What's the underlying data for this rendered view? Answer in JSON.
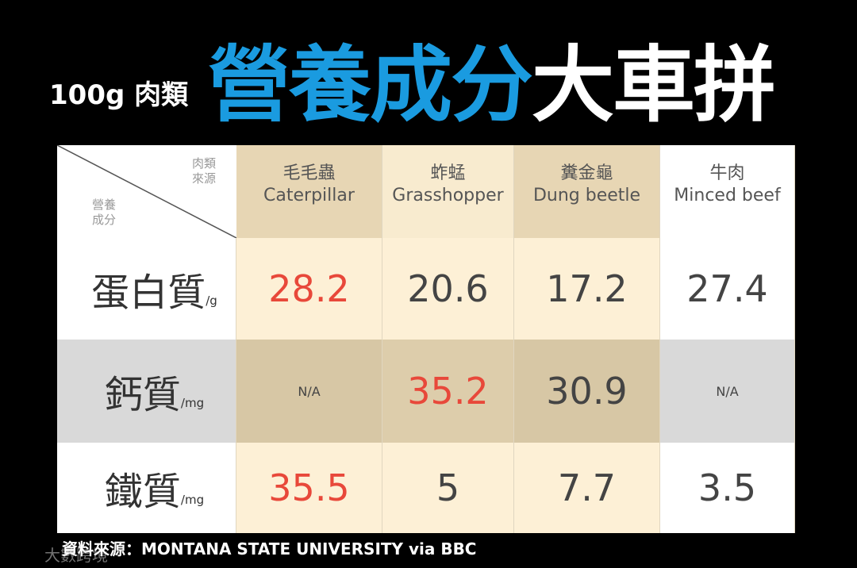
{
  "header": {
    "prefix": "100g 肉類",
    "title_blue": "營養成分",
    "title_white": "大車拼"
  },
  "table": {
    "corner_top": [
      "肉類",
      "來源"
    ],
    "corner_bottom": [
      "營養",
      "成分"
    ],
    "columns": [
      {
        "zh": "毛毛蟲",
        "en": "Caterpillar"
      },
      {
        "zh": "蚱蜢",
        "en": "Grasshopper"
      },
      {
        "zh": "糞金龜",
        "en": "Dung beetle"
      },
      {
        "zh": "牛肉",
        "en": "Minced beef"
      }
    ],
    "highlight_color": "#e8483a",
    "rows": [
      {
        "label": "蛋白質",
        "unit": "/g",
        "cells": [
          28.2,
          20.6,
          17.2,
          27.4
        ],
        "highlighted": 0
      },
      {
        "label": "鈣質",
        "unit": "/mg",
        "cells": [
          "N/A",
          35.2,
          30.9,
          "N/A"
        ],
        "highlighted": 1
      },
      {
        "label": "鐵質",
        "unit": "/mg",
        "cells": [
          35.5,
          5,
          7.7,
          3.5
        ],
        "highlighted": 0
      }
    ]
  },
  "footer": {
    "source": "資料來源：MONTANA STATE UNIVERSITY via BBC",
    "watermark": "大數跨境"
  }
}
